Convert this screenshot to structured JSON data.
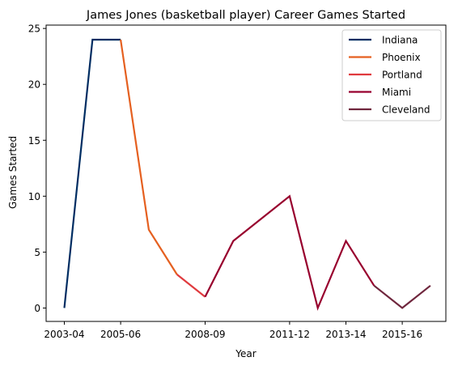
{
  "chart_data": {
    "type": "line",
    "title": "James Jones (basketball player) Career Games Started",
    "xlabel": "Year",
    "ylabel": "Games Started",
    "ylim": [
      -1.2,
      25.3
    ],
    "yticks": [
      0,
      5,
      10,
      15,
      20,
      25
    ],
    "x_categories": [
      "2003-04",
      "2004-05",
      "2005-06",
      "2006-07",
      "2007-08",
      "2008-09",
      "2009-10",
      "2010-11",
      "2011-12",
      "2012-13",
      "2013-14",
      "2014-15",
      "2015-16",
      "2016-17"
    ],
    "x_tick_labels": [
      "2003-04",
      "2005-06",
      "2008-09",
      "2011-12",
      "2013-14",
      "2015-16"
    ],
    "grid": false,
    "legend_position": "upper right",
    "series": [
      {
        "name": "Indiana",
        "color": "#002D62",
        "points": [
          [
            "2003-04",
            0
          ],
          [
            "2004-05",
            24
          ],
          [
            "2005-06",
            24
          ]
        ]
      },
      {
        "name": "Phoenix",
        "color": "#E56020",
        "points": [
          [
            "2005-06",
            24
          ],
          [
            "2006-07",
            7
          ],
          [
            "2007-08",
            3
          ]
        ]
      },
      {
        "name": "Portland",
        "color": "#E03A3E",
        "points": [
          [
            "2007-08",
            3
          ],
          [
            "2008-09",
            1
          ]
        ]
      },
      {
        "name": "Miami",
        "color": "#98002E",
        "points": [
          [
            "2008-09",
            1
          ],
          [
            "2009-10",
            6
          ],
          [
            "2011-12",
            10
          ],
          [
            "2012-13",
            0
          ],
          [
            "2013-14",
            6
          ],
          [
            "2014-15",
            2
          ]
        ]
      },
      {
        "name": "Cleveland",
        "color": "#6F263D",
        "points": [
          [
            "2014-15",
            2
          ],
          [
            "2015-16",
            0
          ],
          [
            "2016-17",
            2
          ]
        ]
      }
    ]
  }
}
